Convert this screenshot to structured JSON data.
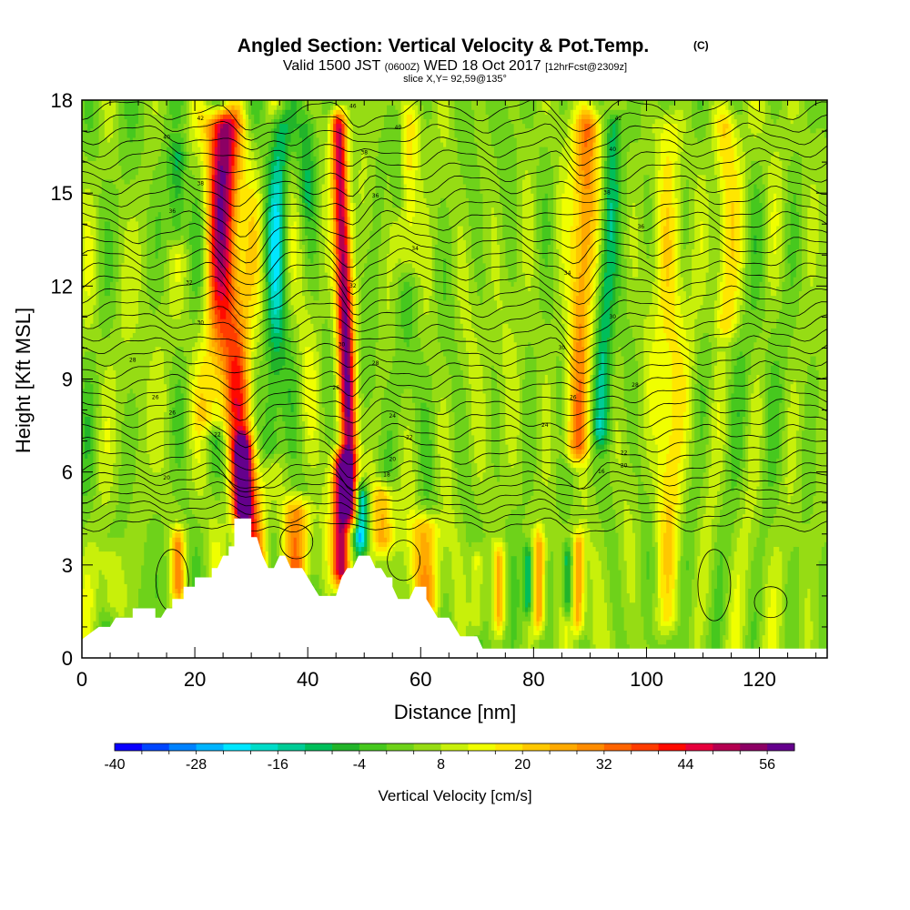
{
  "chart_data": {
    "type": "heatmap",
    "title": "Angled Section: Vertical Velocity & Pot.Temp.",
    "title_unit": "(C)",
    "subtitle": {
      "prefix": "Valid 1500 JST",
      "utc": "(0600Z)",
      "date": "WED 18 Oct 2017",
      "forecast": "[12hrFcst@2309z]"
    },
    "slice": "slice X,Y= 92,59@135°",
    "xlabel": "Distance [nm]",
    "ylabel": "Height [Kft MSL]",
    "xlim": [
      0,
      132
    ],
    "ylim": [
      0,
      18
    ],
    "x_ticks": [
      "0",
      "20",
      "40",
      "60",
      "80",
      "100",
      "120"
    ],
    "y_ticks": [
      "0",
      "3",
      "6",
      "9",
      "12",
      "15",
      "18"
    ],
    "colorbar": {
      "label": "Vertical Velocity [cm/s]",
      "tick_labels": [
        "-40",
        "-28",
        "-16",
        "-4",
        "8",
        "20",
        "32",
        "44",
        "56"
      ],
      "range": [
        -40,
        60
      ],
      "step": 4,
      "colors": [
        "#0a00ff",
        "#0046ff",
        "#0082ff",
        "#00b4ff",
        "#00e6ff",
        "#00dcc8",
        "#00cc96",
        "#00be5a",
        "#22b42a",
        "#46c81e",
        "#6ed21a",
        "#96dc14",
        "#c8f00a",
        "#f0ff00",
        "#ffe600",
        "#ffc800",
        "#ffaa00",
        "#ff8c00",
        "#ff6400",
        "#ff3c00",
        "#ff0a00",
        "#e6003c",
        "#b40050",
        "#8c0064",
        "#64008c"
      ]
    },
    "terrain_kft": [
      [
        0,
        0.6
      ],
      [
        3,
        1.0
      ],
      [
        5,
        1.0
      ],
      [
        6,
        1.3
      ],
      [
        9,
        1.3
      ],
      [
        9,
        1.6
      ],
      [
        13,
        1.6
      ],
      [
        13,
        1.3
      ],
      [
        14,
        1.3
      ],
      [
        15,
        1.6
      ],
      [
        16,
        1.6
      ],
      [
        16,
        1.9
      ],
      [
        18,
        1.9
      ],
      [
        18,
        2.3
      ],
      [
        20,
        2.3
      ],
      [
        20,
        2.6
      ],
      [
        23,
        2.6
      ],
      [
        23,
        2.9
      ],
      [
        24,
        2.9
      ],
      [
        25,
        3.3
      ],
      [
        26,
        3.3
      ],
      [
        26,
        3.6
      ],
      [
        27,
        3.6
      ],
      [
        27,
        4.5
      ],
      [
        30,
        4.5
      ],
      [
        30,
        3.9
      ],
      [
        31,
        3.9
      ],
      [
        32,
        3.3
      ],
      [
        33,
        2.9
      ],
      [
        34,
        2.9
      ],
      [
        35,
        3.3
      ],
      [
        36,
        3.3
      ],
      [
        37,
        2.9
      ],
      [
        39,
        2.9
      ],
      [
        40,
        2.6
      ],
      [
        41,
        2.3
      ],
      [
        42,
        2.0
      ],
      [
        45,
        2.0
      ],
      [
        46,
        2.6
      ],
      [
        47,
        2.9
      ],
      [
        48,
        2.9
      ],
      [
        49,
        3.3
      ],
      [
        51,
        3.3
      ],
      [
        52,
        2.9
      ],
      [
        53,
        2.9
      ],
      [
        54,
        2.6
      ],
      [
        55,
        2.6
      ],
      [
        55,
        2.3
      ],
      [
        56,
        1.9
      ],
      [
        58,
        1.9
      ],
      [
        59,
        2.3
      ],
      [
        61,
        2.3
      ],
      [
        61,
        1.9
      ],
      [
        62,
        1.6
      ],
      [
        63,
        1.3
      ],
      [
        65,
        1.3
      ],
      [
        66,
        1.0
      ],
      [
        67,
        0.7
      ],
      [
        70,
        0.7
      ],
      [
        71,
        0.3
      ],
      [
        73,
        0.3
      ],
      [
        73,
        0.3
      ],
      [
        132,
        0.3
      ]
    ],
    "updrafts": [
      {
        "x": 29,
        "h": [
          0,
          18
        ],
        "w": 3.0,
        "peak": 30,
        "tilt": -1.2
      },
      {
        "x": 23,
        "h": [
          7,
          18
        ],
        "w": 2.5,
        "peak": 20,
        "tilt": 0.6
      },
      {
        "x": 47.5,
        "h": [
          4,
          18
        ],
        "w": 1.4,
        "peak": 48,
        "tilt": -0.6
      },
      {
        "x": 46,
        "h": [
          2,
          7
        ],
        "w": 1.5,
        "peak": 50,
        "tilt": 0
      },
      {
        "x": 28.5,
        "h": [
          4,
          7.5
        ],
        "w": 1.5,
        "peak": 42,
        "tilt": 0
      },
      {
        "x": 87.5,
        "h": [
          6,
          18
        ],
        "w": 2.2,
        "peak": 26,
        "tilt": 0.6
      },
      {
        "x": 81,
        "h": [
          0.5,
          4.5
        ],
        "w": 1.0,
        "peak": 22,
        "tilt": 0
      },
      {
        "x": 88,
        "h": [
          0.5,
          4.5
        ],
        "w": 1.0,
        "peak": 22,
        "tilt": 0
      },
      {
        "x": 61,
        "h": [
          1,
          5
        ],
        "w": 2.5,
        "peak": 20,
        "tilt": 0
      },
      {
        "x": 38.5,
        "h": [
          2,
          5.5
        ],
        "w": 2.5,
        "peak": 24,
        "tilt": 0
      },
      {
        "x": 17,
        "h": [
          1.5,
          4.5
        ],
        "w": 1.2,
        "peak": 22,
        "tilt": 0
      },
      {
        "x": 53.5,
        "h": [
          3,
          6
        ],
        "w": 2.0,
        "peak": 22,
        "tilt": 0
      },
      {
        "x": 74,
        "h": [
          0.5,
          4
        ],
        "w": 1.0,
        "peak": 18,
        "tilt": 0
      },
      {
        "x": 70,
        "h": [
          0.5,
          4
        ],
        "w": 1.2,
        "peak": 14,
        "tilt": 0
      },
      {
        "x": 104,
        "h": [
          0.5,
          18
        ],
        "w": 2.5,
        "peak": 12,
        "tilt": 0
      },
      {
        "x": 114,
        "h": [
          10,
          18
        ],
        "w": 2.0,
        "peak": 14,
        "tilt": 0
      },
      {
        "x": 58,
        "h": [
          12,
          18
        ],
        "w": 2.0,
        "peak": 10,
        "tilt": 0
      },
      {
        "x": 5,
        "h": [
          1,
          4
        ],
        "w": 2.0,
        "peak": 10,
        "tilt": 0
      }
    ],
    "downdrafts": [
      {
        "x": 33.5,
        "h": [
          6,
          18
        ],
        "w": 1.8,
        "peak": -18,
        "tilt": 0.5
      },
      {
        "x": 49.5,
        "h": [
          3,
          6
        ],
        "w": 1.3,
        "peak": -32,
        "tilt": 0
      },
      {
        "x": 91.5,
        "h": [
          6.5,
          18
        ],
        "w": 1.6,
        "peak": -16,
        "tilt": 0.8
      },
      {
        "x": 79,
        "h": [
          1,
          4
        ],
        "w": 0.8,
        "peak": -20,
        "tilt": 0
      },
      {
        "x": 86,
        "h": [
          1,
          4
        ],
        "w": 0.8,
        "peak": -18,
        "tilt": 0
      },
      {
        "x": 17,
        "h": [
          13,
          17
        ],
        "w": 1.5,
        "peak": -14,
        "tilt": 0
      },
      {
        "x": 56,
        "h": [
          14,
          18
        ],
        "w": 1.2,
        "peak": -10,
        "tilt": 0
      },
      {
        "x": 40,
        "h": [
          14,
          18
        ],
        "w": 1.5,
        "peak": -8,
        "tilt": 0
      }
    ],
    "isentropes": {
      "base_kft": [
        4.3,
        4.6,
        4.9,
        5.2,
        5.5,
        5.8,
        6.1,
        6.5,
        6.9,
        7.3,
        7.7,
        8.1,
        8.5,
        8.9,
        9.3,
        9.7,
        10.1,
        10.5,
        10.9,
        11.3,
        11.7,
        12.1,
        12.5,
        12.9,
        13.3,
        13.7,
        14.1,
        14.5,
        14.9,
        15.3,
        15.7,
        16.1,
        16.5,
        16.9,
        17.3,
        17.7
      ],
      "dips": [
        {
          "x": 29,
          "depth": 0.7,
          "w": 4
        },
        {
          "x": 48,
          "depth": 0.5,
          "w": 2.5
        },
        {
          "x": 88,
          "depth": 0.5,
          "w": 3
        }
      ]
    },
    "isentrope_labels": [
      {
        "x": 54,
        "y": 5.9,
        "text": "18"
      },
      {
        "x": 92,
        "y": 6.0,
        "text": "16"
      },
      {
        "x": 15,
        "y": 5.8,
        "text": "20"
      },
      {
        "x": 55,
        "y": 6.4,
        "text": "20"
      },
      {
        "x": 96,
        "y": 6.2,
        "text": "20"
      },
      {
        "x": 96,
        "y": 6.6,
        "text": "22"
      },
      {
        "x": 24,
        "y": 7.2,
        "text": "22"
      },
      {
        "x": 58,
        "y": 7.1,
        "text": "22"
      },
      {
        "x": 82,
        "y": 7.5,
        "text": "24"
      },
      {
        "x": 55,
        "y": 7.8,
        "text": "24"
      },
      {
        "x": 16,
        "y": 7.9,
        "text": "26"
      },
      {
        "x": 13,
        "y": 8.4,
        "text": "26"
      },
      {
        "x": 45,
        "y": 8.7,
        "text": "26"
      },
      {
        "x": 87,
        "y": 8.4,
        "text": "26"
      },
      {
        "x": 98,
        "y": 8.8,
        "text": "28"
      },
      {
        "x": 52,
        "y": 9.5,
        "text": "28"
      },
      {
        "x": 9,
        "y": 9.6,
        "text": "28"
      },
      {
        "x": 46,
        "y": 10.1,
        "text": "30"
      },
      {
        "x": 85,
        "y": 10.0,
        "text": "30"
      },
      {
        "x": 21,
        "y": 10.8,
        "text": "30"
      },
      {
        "x": 94,
        "y": 11.0,
        "text": "30"
      },
      {
        "x": 19,
        "y": 12.1,
        "text": "32"
      },
      {
        "x": 48,
        "y": 12.0,
        "text": "32"
      },
      {
        "x": 86,
        "y": 12.4,
        "text": "34"
      },
      {
        "x": 59,
        "y": 13.2,
        "text": "34"
      },
      {
        "x": 99,
        "y": 13.9,
        "text": "36"
      },
      {
        "x": 16,
        "y": 14.4,
        "text": "36"
      },
      {
        "x": 52,
        "y": 14.9,
        "text": "36"
      },
      {
        "x": 93,
        "y": 15.0,
        "text": "38"
      },
      {
        "x": 21,
        "y": 15.3,
        "text": "38"
      },
      {
        "x": 50,
        "y": 16.3,
        "text": "38"
      },
      {
        "x": 94,
        "y": 16.4,
        "text": "40"
      },
      {
        "x": 15,
        "y": 16.8,
        "text": "40"
      },
      {
        "x": 56,
        "y": 17.1,
        "text": "40"
      },
      {
        "x": 21,
        "y": 17.4,
        "text": "42"
      },
      {
        "x": 95,
        "y": 17.4,
        "text": "42"
      },
      {
        "x": 48,
        "y": 17.8,
        "text": "46"
      }
    ]
  }
}
